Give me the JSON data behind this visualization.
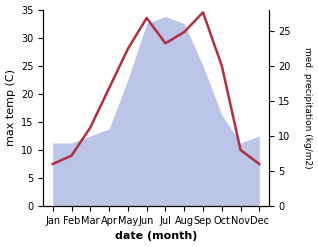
{
  "months": [
    "Jan",
    "Feb",
    "Mar",
    "Apr",
    "May",
    "Jun",
    "Jul",
    "Aug",
    "Sep",
    "Oct",
    "Nov",
    "Dec"
  ],
  "temp": [
    7.5,
    9.0,
    14.0,
    21.0,
    28.0,
    33.5,
    29.0,
    31.0,
    34.5,
    25.0,
    10.0,
    7.5
  ],
  "precip": [
    9,
    9,
    10,
    11,
    18,
    26,
    27,
    26,
    20,
    13,
    9,
    10
  ],
  "temp_color": "#b03040",
  "precip_fill_color": "#bcc4e8",
  "xlabel": "date (month)",
  "ylabel_left": "max temp (C)",
  "ylabel_right": "med. precipitation (kg/m2)",
  "ylim_left": [
    0,
    35
  ],
  "ylim_right": [
    0,
    28
  ],
  "yticks_left": [
    0,
    5,
    10,
    15,
    20,
    25,
    30,
    35
  ],
  "yticks_right": [
    0,
    5,
    10,
    15,
    20,
    25
  ]
}
